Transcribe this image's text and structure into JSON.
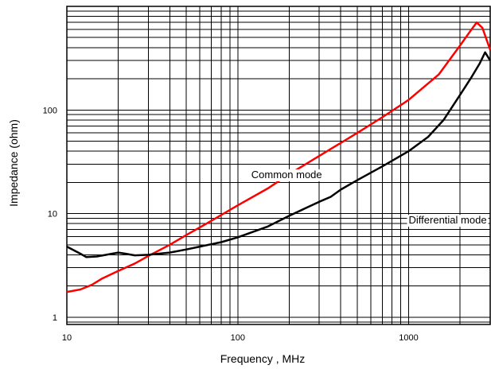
{
  "chart_data": {
    "type": "line",
    "title": "",
    "xlabel": "Frequency , MHz",
    "ylabel": "Impedance (ohm)",
    "x_scale": "log",
    "y_scale": "log",
    "xlim": [
      10,
      3000
    ],
    "ylim": [
      0.85,
      1000
    ],
    "grid": true,
    "x_ticks": [
      {
        "value": 10,
        "label": "10"
      },
      {
        "value": 100,
        "label": "100"
      },
      {
        "value": 1000,
        "label": "1000"
      }
    ],
    "y_ticks": [
      {
        "value": 1,
        "label": "1"
      },
      {
        "value": 10,
        "label": "10"
      },
      {
        "value": 100,
        "label": "100"
      }
    ],
    "series": [
      {
        "name": "Common mode",
        "color": "#ff0000",
        "x": [
          10,
          12,
          14,
          16,
          20,
          25,
          30,
          40,
          50,
          70,
          100,
          150,
          200,
          300,
          350,
          400,
          500,
          700,
          1000,
          1500,
          2000,
          2300,
          2500,
          2700,
          3000
        ],
        "y": [
          1.75,
          1.85,
          2.05,
          2.35,
          2.8,
          3.3,
          3.9,
          5.0,
          6.2,
          8.5,
          12.0,
          17.5,
          24.0,
          36.0,
          42.0,
          48.0,
          60.0,
          85.0,
          125.0,
          220.0,
          420.0,
          580.0,
          700.0,
          620.0,
          380.0
        ]
      },
      {
        "name": "Differential mode",
        "color": "#000000",
        "x": [
          10,
          12,
          13,
          15,
          17,
          20,
          22,
          25,
          30,
          40,
          50,
          60,
          80,
          100,
          150,
          200,
          300,
          350,
          400,
          500,
          700,
          1000,
          1300,
          1600,
          2000,
          2300,
          2600,
          2800,
          3000
        ],
        "y": [
          4.8,
          4.1,
          3.8,
          3.85,
          4.0,
          4.2,
          4.1,
          3.95,
          4.0,
          4.2,
          4.5,
          4.8,
          5.3,
          5.9,
          7.5,
          9.5,
          13.0,
          14.5,
          17.0,
          21.0,
          28.5,
          40.0,
          55.0,
          80.0,
          140.0,
          200.0,
          280.0,
          360.0,
          300.0
        ]
      }
    ],
    "annotations": [
      {
        "text": "Common mode",
        "x": 120,
        "y": 22
      },
      {
        "text": "Differential mode",
        "x": 1000,
        "y": 8
      }
    ]
  }
}
